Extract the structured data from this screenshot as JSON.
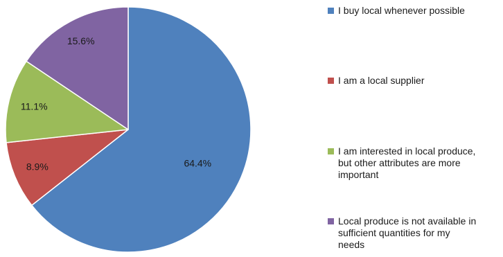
{
  "chart_data": {
    "type": "pie",
    "title": "",
    "slices": [
      {
        "label": "I buy local whenever possible",
        "value": 64.4,
        "display": "64.4%",
        "color": "#4f81bd"
      },
      {
        "label": "I am a local supplier",
        "value": 8.9,
        "display": "8.9%",
        "color": "#c0504d"
      },
      {
        "label": "I am interested in local produce,\nbut other attributes are more\nimportant",
        "value": 11.1,
        "display": "11.1%",
        "color": "#9bbb59"
      },
      {
        "label": "Local produce is not available in\nsufficient quantities for my\nneeds",
        "value": 15.6,
        "display": "15.6%",
        "color": "#8064a2"
      }
    ],
    "start_angle": "12 o'clock",
    "direction": "clockwise",
    "legend_position": "right"
  }
}
